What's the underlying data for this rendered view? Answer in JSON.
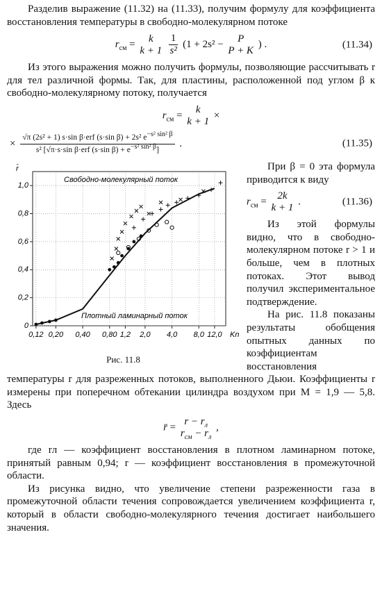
{
  "paragraphs": [
    "Разделив выражение (11.32) на (11.33), получим формулу для коэффициента восстановления температуры в свободно-молекулярном потоке",
    "Из этого выражения можно получить формулы, позволяющие рассчитывать r для тел различной формы. Так, для пластины, расположенной под углом β к свободно-молекулярному потоку, получается",
    "При β = 0 эта формула приводится к виду",
    "Из этой формулы видно, что в свободно-молекулярном потоке r > 1 и больше, чем в плотных потоках. Этот вывод получил экспериментальное подтверждение.",
    "На рис. 11.8 показаны результаты обобщения опытных данных по коэффициентам восстановления температуры r для разреженных потоков, выполненного Дьюи. Коэффициенты r измерены при поперечном обтекании цилиндра воздухом при M = 1,9 — 5,8. Здесь",
    "где rл — коэффициент восстановления в плотном ламинарном потоке, принятый равным 0,94; r — коэффициент восстановления в промежуточной области.",
    "Из рисунка видно, что увеличение степени разреженности газа в промежуточной области течения сопровождается увеличением коэффициента r, который в области свободно-молекулярного течения достигает наибольшего значения."
  ],
  "equations": {
    "e34": {
      "lhs": "r",
      "lhs_sub": "см",
      "eq": "=",
      "f1": {
        "num": "k",
        "den": "k + 1"
      },
      "f2": {
        "num": "1",
        "den": "s²"
      },
      "open": "(1 + 2s² −",
      "f3": {
        "num": "P",
        "den": "P + K"
      },
      "close": ") .",
      "number": "(11.34)"
    },
    "e35": {
      "lhs": "r",
      "lhs_sub": "см",
      "eq": "=",
      "f1": {
        "num": "k",
        "den": "k + 1"
      },
      "times1": "×",
      "times2": "×",
      "num": "√π (2s² + 1) s·sin β·erf (s·sin β) + 2s² e",
      "num_sup": "−s² sin² β",
      "den": "s² [√π·s·sin β·erf (s·sin β) + e",
      "den_sup": "−s² sin² β",
      "den_end": "]",
      "end": ".",
      "number": "(11.35)"
    },
    "e36": {
      "lhs": "r",
      "lhs_sub": "см",
      "eq": "=",
      "f1": {
        "num": "2k",
        "den": "k + 1"
      },
      "end": ".",
      "number": "(11.36)"
    },
    "rbar": {
      "lhs": "r̄",
      "eq": "=",
      "num": "r − r",
      "num_sub": "л",
      "den": "r",
      "den_sub1": "см",
      "den_mid": " − r",
      "den_sub2": "л",
      "end": ","
    }
  },
  "figure": {
    "caption": "Рис. 11.8",
    "y_label": "r̄",
    "x_label": "Kn",
    "annotation_top": "Свободно-молекулярный поток",
    "annotation_bottom": "Плотный ламинарный поток",
    "log_x": true,
    "grid": true,
    "xlim": [
      0.11,
      16
    ],
    "ylim": [
      0,
      1.1
    ],
    "xticks": [
      {
        "value": 0.12,
        "label": "0,12"
      },
      {
        "value": 0.2,
        "label": "0,20"
      },
      {
        "value": 0.4,
        "label": "0,40"
      },
      {
        "value": 0.8,
        "label": "0,80"
      },
      {
        "value": 1.2,
        "label": "1,2"
      },
      {
        "value": 2,
        "label": "2,0"
      },
      {
        "value": 4,
        "label": "4,0"
      },
      {
        "value": 8,
        "label": "8,0"
      },
      {
        "value": 12,
        "label": "12,0"
      }
    ],
    "yticks": [
      0,
      {
        "value": 0.2,
        "label": "0,2"
      },
      {
        "value": 0.4,
        "label": "0,4"
      },
      {
        "value": 0.6,
        "label": "0,6"
      },
      {
        "value": 0.8,
        "label": "0,8"
      },
      {
        "value": 1.0,
        "label": "1,0"
      }
    ],
    "curve": {
      "x": [
        0.12,
        0.2,
        0.4,
        0.8,
        1.2,
        2,
        4,
        8,
        12
      ],
      "y": [
        0.01,
        0.04,
        0.12,
        0.36,
        0.5,
        0.66,
        0.84,
        0.94,
        0.98
      ]
    },
    "points": [
      {
        "marker": "dot",
        "x": [
          0.12,
          0.14,
          0.17,
          0.2,
          0.8,
          0.9,
          1.0,
          1.1,
          1.3,
          1.5,
          1.8
        ],
        "y": [
          0.01,
          0.02,
          0.03,
          0.04,
          0.4,
          0.42,
          0.45,
          0.5,
          0.55,
          0.6,
          0.64
        ]
      },
      {
        "marker": "cross",
        "x": [
          0.85,
          0.95,
          1.0,
          1.1,
          1.2,
          1.4,
          1.6,
          1.8,
          2.2,
          3,
          5,
          9
        ],
        "y": [
          0.48,
          0.55,
          0.62,
          0.67,
          0.73,
          0.78,
          0.82,
          0.85,
          0.8,
          0.88,
          0.9,
          0.96
        ]
      },
      {
        "marker": "plus",
        "x": [
          1.5,
          1.9,
          2.4,
          3,
          3.6,
          4.5,
          6,
          8,
          11,
          14
        ],
        "y": [
          0.7,
          0.76,
          0.8,
          0.83,
          0.86,
          0.88,
          0.91,
          0.93,
          0.97,
          1.02
        ]
      },
      {
        "marker": "circle",
        "x": [
          1.0,
          1.3,
          1.7,
          2.2,
          2.7,
          3.5,
          4
        ],
        "y": [
          0.52,
          0.56,
          0.62,
          0.68,
          0.72,
          0.74,
          0.7
        ]
      }
    ]
  }
}
